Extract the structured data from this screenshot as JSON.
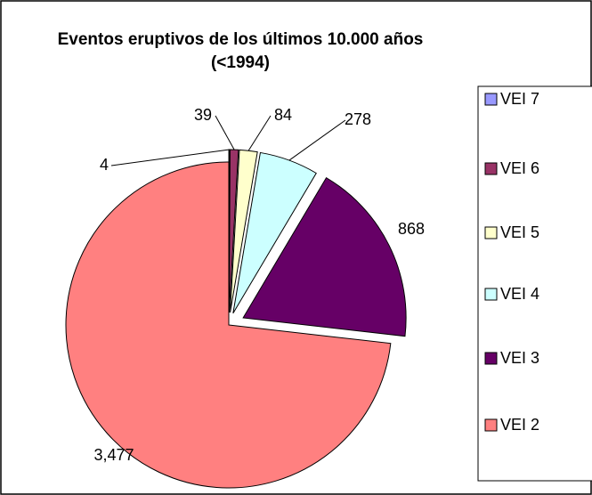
{
  "chart_data": {
    "type": "pie",
    "title": "Eventos eruptivos de los últimos 10.000 años (<1994)",
    "categories": [
      "VEI 7",
      "VEI 6",
      "VEI 5",
      "VEI 4",
      "VEI 3",
      "VEI 2"
    ],
    "values": [
      4,
      39,
      84,
      278,
      868,
      3477
    ],
    "value_labels": [
      "4",
      "39",
      "84",
      "278",
      "868",
      "3,477"
    ],
    "colors": [
      "#9999ff",
      "#993366",
      "#ffffcc",
      "#ccffff",
      "#660066",
      "#ff8080"
    ],
    "legend": "right"
  }
}
